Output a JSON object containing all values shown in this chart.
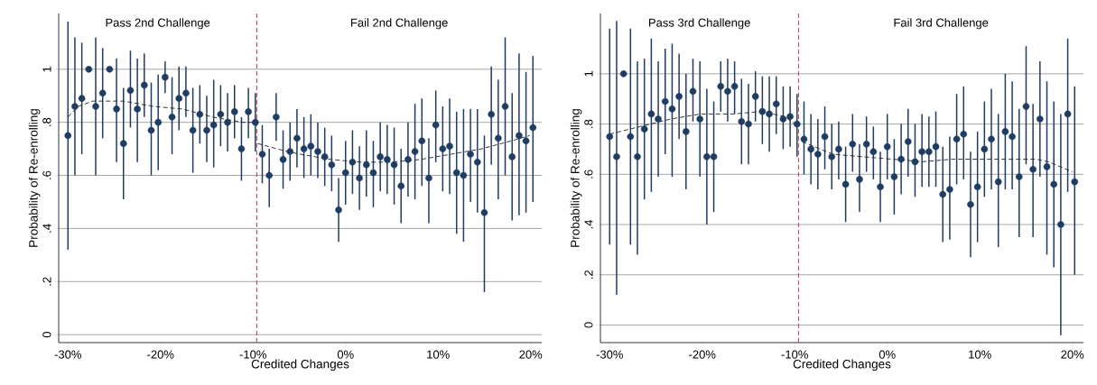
{
  "chart_data": [
    {
      "type": "scatter",
      "xlabel": "Credited Changes",
      "ylabel": "Probability of Re-enrolling",
      "grid": "y",
      "annotations": [
        "Pass 2nd Challenge",
        "Fail 2nd Challenge"
      ],
      "xlim": [
        -31,
        21.2
      ],
      "ylim": [
        -0.03,
        1.21
      ],
      "xticks": [
        {
          "value": -30,
          "label": "-30%"
        },
        {
          "value": -20,
          "label": "-20%"
        },
        {
          "value": -10,
          "label": "-10%"
        },
        {
          "value": 0,
          "label": "0%"
        },
        {
          "value": 10,
          "label": "10%"
        },
        {
          "value": 20,
          "label": "20%"
        }
      ],
      "yticks": [
        0,
        {
          "value": 0.2,
          "label": ".2"
        },
        {
          "value": 0.4,
          "label": ".4"
        },
        {
          "value": 0.6,
          "label": ".6"
        },
        {
          "value": 0.8,
          "label": ".8"
        },
        1
      ],
      "ref_lines": [
        {
          "axis": "x",
          "value": -9.6,
          "color": "#b5323c",
          "line_style": "dashed"
        }
      ],
      "x": [
        -30,
        -29.25,
        -28.5,
        -27.75,
        -27,
        -26.25,
        -25.5,
        -24.75,
        -24,
        -23.25,
        -22.5,
        -21.75,
        -21,
        -20.25,
        -19.5,
        -18.75,
        -18,
        -17.25,
        -16.5,
        -15.75,
        -15,
        -14.25,
        -13.5,
        -12.75,
        -12,
        -11.25,
        -10.5,
        -9.75,
        -9,
        -8.25,
        -7.5,
        -6.75,
        -6,
        -5.25,
        -4.5,
        -3.75,
        -3,
        -2.25,
        -1.5,
        -0.75,
        0,
        0.75,
        1.5,
        2.25,
        3,
        3.75,
        4.5,
        5.25,
        6,
        6.75,
        7.5,
        8.25,
        9,
        9.75,
        10.5,
        11.25,
        12,
        12.75,
        13.5,
        14.25,
        15,
        15.75,
        16.5,
        17.25,
        18,
        18.75,
        19.5,
        20.25
      ],
      "series": [
        {
          "marker": "circle",
          "color": "#1f3c63",
          "values": [
            0.75,
            0.86,
            0.89,
            1.0,
            0.86,
            0.91,
            1.0,
            0.85,
            0.72,
            0.92,
            0.85,
            0.94,
            0.77,
            0.8,
            0.97,
            0.82,
            0.89,
            0.91,
            0.77,
            0.83,
            0.77,
            0.79,
            0.83,
            0.8,
            0.84,
            0.7,
            0.84,
            0.8,
            0.68,
            0.6,
            0.82,
            0.66,
            0.69,
            0.74,
            0.7,
            0.71,
            0.69,
            0.67,
            0.64,
            0.47,
            0.61,
            0.65,
            0.59,
            0.64,
            0.61,
            0.67,
            0.66,
            0.64,
            0.56,
            0.66,
            0.69,
            0.73,
            0.59,
            0.79,
            0.7,
            0.71,
            0.61,
            0.6,
            0.68,
            0.65,
            0.46,
            0.83,
            0.74,
            0.86,
            0.67,
            0.75,
            0.73,
            0.78
          ],
          "errors": [
            [
              0.32,
              1.18
            ],
            [
              0.6,
              1.12
            ],
            [
              0.68,
              1.1
            ],
            null,
            [
              0.6,
              1.12
            ],
            [
              0.74,
              1.08
            ],
            null,
            [
              0.65,
              1.04
            ],
            [
              0.51,
              0.93
            ],
            [
              0.78,
              1.07
            ],
            [
              0.65,
              1.04
            ],
            [
              0.82,
              1.06
            ],
            [
              0.6,
              0.95
            ],
            [
              0.62,
              0.98
            ],
            [
              0.91,
              1.03
            ],
            [
              0.68,
              0.97
            ],
            [
              0.77,
              1.01
            ],
            [
              0.82,
              1.01
            ],
            [
              0.61,
              0.93
            ],
            [
              0.72,
              0.94
            ],
            [
              0.65,
              0.9
            ],
            [
              0.63,
              0.96
            ],
            [
              0.71,
              0.94
            ],
            [
              0.69,
              0.91
            ],
            [
              0.74,
              0.94
            ],
            [
              0.58,
              0.82
            ],
            [
              0.74,
              0.93
            ],
            [
              0.69,
              0.91
            ],
            [
              0.57,
              0.79
            ],
            [
              0.48,
              0.7
            ],
            [
              0.73,
              0.91
            ],
            [
              0.55,
              0.77
            ],
            [
              0.58,
              0.8
            ],
            [
              0.63,
              0.85
            ],
            [
              0.59,
              0.82
            ],
            [
              0.6,
              0.83
            ],
            [
              0.59,
              0.8
            ],
            [
              0.56,
              0.78
            ],
            [
              0.54,
              0.75
            ],
            [
              0.35,
              0.59
            ],
            [
              0.49,
              0.73
            ],
            [
              0.53,
              0.77
            ],
            [
              0.47,
              0.71
            ],
            [
              0.52,
              0.77
            ],
            [
              0.48,
              0.73
            ],
            [
              0.54,
              0.8
            ],
            [
              0.53,
              0.79
            ],
            [
              0.49,
              0.78
            ],
            [
              0.42,
              0.7
            ],
            [
              0.52,
              0.8
            ],
            [
              0.51,
              0.87
            ],
            [
              0.56,
              0.89
            ],
            [
              0.42,
              0.74
            ],
            [
              0.65,
              0.92
            ],
            [
              0.54,
              0.86
            ],
            [
              0.53,
              0.89
            ],
            [
              0.38,
              0.84
            ],
            [
              0.35,
              0.85
            ],
            [
              0.5,
              0.85
            ],
            [
              0.46,
              0.85
            ],
            [
              0.16,
              0.75
            ],
            [
              0.64,
              1.01
            ],
            [
              0.51,
              0.96
            ],
            [
              0.6,
              1.12
            ],
            [
              0.43,
              0.91
            ],
            [
              0.45,
              1.06
            ],
            [
              0.46,
              0.99
            ],
            [
              0.5,
              1.05
            ]
          ]
        },
        {
          "type": "line",
          "color": "#222222",
          "line_style": "dashed",
          "marker": "none",
          "x": [
            -30,
            -28.9,
            -27.3,
            -24,
            -20.8,
            -17.6,
            -14.4,
            -11.1,
            -9.7
          ],
          "values": [
            0.82,
            0.86,
            0.88,
            0.88,
            0.86,
            0.85,
            0.82,
            0.8,
            0.8
          ]
        },
        {
          "type": "line",
          "color": "#222222",
          "line_style": "dashed",
          "marker": "none",
          "x": [
            -9.5,
            -6.3,
            -4.9,
            -1.6,
            1.6,
            4.9,
            8.1,
            11.4,
            14.7,
            17.9,
            19.9
          ],
          "values": [
            0.72,
            0.69,
            0.68,
            0.66,
            0.65,
            0.65,
            0.66,
            0.68,
            0.7,
            0.73,
            0.75
          ]
        }
      ]
    },
    {
      "type": "scatter",
      "xlabel": "Credited Changes",
      "ylabel": "Probability of Re-enrolling",
      "grid": "y",
      "annotations": [
        "Pass 3rd Challenge",
        "Fail 3rd Challenge"
      ],
      "xlim": [
        -31,
        21.2
      ],
      "ylim": [
        -0.07,
        1.24
      ],
      "xticks": [
        {
          "value": -30,
          "label": "-30%"
        },
        {
          "value": -20,
          "label": "-20%"
        },
        {
          "value": -10,
          "label": "-10%"
        },
        {
          "value": 0,
          "label": "0%"
        },
        {
          "value": 10,
          "label": "10%"
        },
        {
          "value": 20,
          "label": "20%"
        }
      ],
      "yticks": [
        0,
        {
          "value": 0.2,
          "label": ".2"
        },
        {
          "value": 0.4,
          "label": ".4"
        },
        {
          "value": 0.6,
          "label": ".6"
        },
        {
          "value": 0.8,
          "label": ".8"
        },
        1
      ],
      "ref_lines": [
        {
          "axis": "x",
          "value": -9.6,
          "color": "#b5323c",
          "line_style": "dashed"
        }
      ],
      "x": [
        -30,
        -29.25,
        -28.5,
        -27.75,
        -27,
        -26.25,
        -25.5,
        -24.75,
        -24,
        -23.25,
        -22.5,
        -21.75,
        -21,
        -20.25,
        -19.5,
        -18.75,
        -18,
        -17.25,
        -16.5,
        -15.75,
        -15,
        -14.25,
        -13.5,
        -12.75,
        -12,
        -11.25,
        -10.5,
        -9.75,
        -9,
        -8.25,
        -7.5,
        -6.75,
        -6,
        -5.25,
        -4.5,
        -3.75,
        -3,
        -2.25,
        -1.5,
        -0.75,
        0,
        0.75,
        1.5,
        2.25,
        3,
        3.75,
        4.5,
        5.25,
        6,
        6.75,
        7.5,
        8.25,
        9,
        9.75,
        10.5,
        11.25,
        12,
        12.75,
        13.5,
        14.25,
        15,
        15.75,
        16.5,
        17.25,
        18,
        18.75,
        19.5,
        20.25
      ],
      "series": [
        {
          "marker": "circle",
          "color": "#1f3c63",
          "values": [
            0.75,
            0.67,
            1.0,
            0.75,
            0.67,
            0.78,
            0.84,
            0.82,
            0.89,
            0.86,
            0.91,
            0.77,
            0.93,
            0.82,
            0.67,
            0.67,
            0.95,
            0.93,
            0.95,
            0.81,
            0.8,
            0.91,
            0.85,
            0.84,
            0.88,
            0.82,
            0.83,
            0.8,
            0.74,
            0.7,
            0.68,
            0.75,
            0.67,
            0.7,
            0.56,
            0.72,
            0.58,
            0.72,
            0.69,
            0.55,
            0.71,
            0.59,
            0.66,
            0.73,
            0.65,
            0.69,
            0.69,
            0.71,
            0.52,
            0.54,
            0.74,
            0.76,
            0.48,
            0.55,
            0.7,
            0.74,
            0.57,
            0.77,
            0.75,
            0.59,
            0.87,
            0.62,
            0.82,
            0.63,
            0.56,
            0.4,
            0.84,
            0.57
          ],
          "errors": [
            [
              0.32,
              1.18
            ],
            [
              0.12,
              1.21
            ],
            null,
            [
              0.32,
              1.18
            ],
            [
              0.28,
              1.05
            ],
            [
              0.5,
              1.06
            ],
            [
              0.53,
              1.14
            ],
            [
              0.59,
              1.05
            ],
            [
              0.68,
              1.1
            ],
            [
              0.59,
              1.12
            ],
            [
              0.74,
              1.08
            ],
            [
              0.54,
              1.0
            ],
            [
              0.81,
              1.06
            ],
            [
              0.59,
              1.05
            ],
            [
              0.4,
              0.94
            ],
            [
              0.45,
              0.89
            ],
            [
              0.85,
              1.05
            ],
            [
              0.81,
              1.06
            ],
            [
              0.84,
              1.05
            ],
            [
              0.64,
              0.98
            ],
            [
              0.64,
              0.96
            ],
            [
              0.81,
              1.01
            ],
            [
              0.72,
              0.99
            ],
            [
              0.69,
              0.99
            ],
            [
              0.76,
              0.99
            ],
            [
              0.7,
              0.95
            ],
            [
              0.71,
              0.95
            ],
            [
              0.67,
              0.92
            ],
            [
              0.6,
              0.89
            ],
            [
              0.56,
              0.84
            ],
            [
              0.54,
              0.82
            ],
            [
              0.62,
              0.87
            ],
            [
              0.54,
              0.8
            ],
            [
              0.58,
              0.81
            ],
            [
              0.41,
              0.71
            ],
            [
              0.61,
              0.84
            ],
            [
              0.45,
              0.72
            ],
            [
              0.61,
              0.83
            ],
            [
              0.58,
              0.79
            ],
            [
              0.41,
              0.69
            ],
            [
              0.58,
              0.84
            ],
            [
              0.44,
              0.74
            ],
            [
              0.52,
              0.8
            ],
            [
              0.59,
              0.86
            ],
            [
              0.51,
              0.8
            ],
            [
              0.55,
              0.84
            ],
            [
              0.55,
              0.83
            ],
            [
              0.55,
              0.85
            ],
            [
              0.33,
              0.71
            ],
            [
              0.34,
              0.75
            ],
            [
              0.56,
              0.92
            ],
            [
              0.58,
              0.95
            ],
            [
              0.27,
              0.69
            ],
            [
              0.33,
              0.77
            ],
            [
              0.51,
              0.89
            ],
            [
              0.54,
              0.94
            ],
            [
              0.31,
              0.84
            ],
            [
              0.54,
              1.0
            ],
            [
              0.54,
              0.97
            ],
            [
              0.35,
              0.86
            ],
            [
              0.64,
              1.11
            ],
            [
              0.35,
              0.88
            ],
            [
              0.59,
              1.05
            ],
            [
              0.28,
              0.97
            ],
            [
              0.23,
              0.89
            ],
            [
              -0.04,
              0.84
            ],
            [
              0.53,
              1.14
            ],
            [
              0.2,
              0.95
            ]
          ]
        },
        {
          "type": "line",
          "color": "#222222",
          "line_style": "dashed",
          "marker": "none",
          "x": [
            -30,
            -26.7,
            -23.4,
            -20.2,
            -16.6,
            -13.7,
            -11.1,
            -9.6
          ],
          "values": [
            0.76,
            0.79,
            0.82,
            0.84,
            0.84,
            0.85,
            0.83,
            0.79
          ]
        },
        {
          "type": "line",
          "color": "#222222",
          "line_style": "dashed",
          "marker": "none",
          "x": [
            -9.2,
            -5.9,
            -2.7,
            0.6,
            3.8,
            7,
            10.3,
            13.5,
            16.1,
            17.4,
            20
          ],
          "values": [
            0.73,
            0.68,
            0.67,
            0.66,
            0.65,
            0.66,
            0.66,
            0.66,
            0.66,
            0.65,
            0.61
          ]
        }
      ]
    }
  ]
}
